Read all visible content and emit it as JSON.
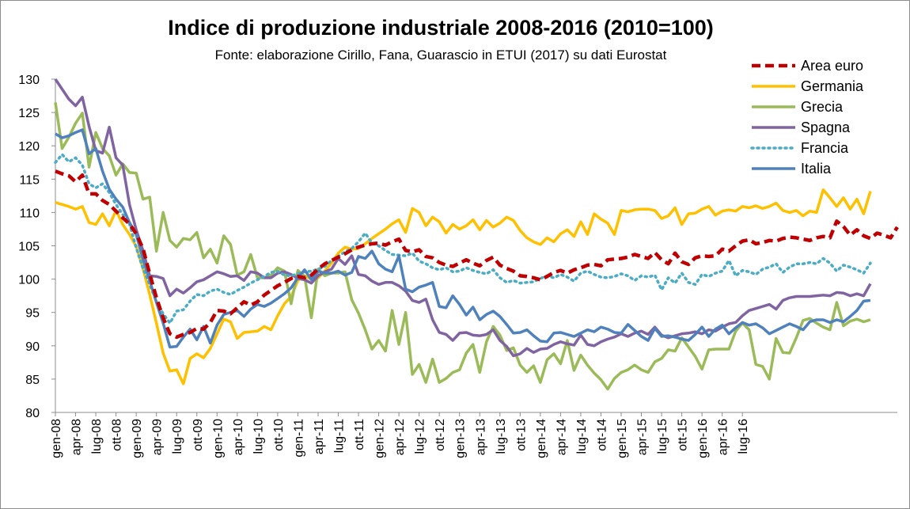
{
  "chart_data": {
    "type": "line",
    "title": "Indice di produzione industriale 2008-2016 (2010=100)",
    "subtitle": "Fonte: elaborazione Cirillo, Fana, Guarascio in ETUI (2017) su dati Eurostat",
    "xlabel": "",
    "ylabel": "",
    "ylim": [
      80,
      130
    ],
    "y_ticks": [
      80,
      85,
      90,
      95,
      100,
      105,
      110,
      115,
      120,
      125,
      130
    ],
    "x_ticks": [
      "gen-08",
      "apr-08",
      "lug-08",
      "ott-08",
      "gen-09",
      "apr-09",
      "lug-09",
      "ott-09",
      "gen-10",
      "apr-10",
      "lug-10",
      "ott-10",
      "gen-11",
      "apr-11",
      "lug-11",
      "ott-11",
      "gen-12",
      "apr-12",
      "lug-12",
      "ott-12",
      "gen-13",
      "apr-13",
      "lug-13",
      "ott-13",
      "gen-14",
      "apr-14",
      "lug-14",
      "ott-14",
      "gen-15",
      "apr-15",
      "lug-15",
      "ott-15",
      "gen-16",
      "apr-16",
      "lug-16"
    ],
    "x_start": "gen-08",
    "frequency": "monthly",
    "grid": false,
    "legend_position": "top-right",
    "series": [
      {
        "name": "Area euro",
        "color": "#c00000",
        "style": "dashed",
        "values": [
          116.2,
          115.8,
          115.5,
          114.6,
          115.6,
          112.8,
          112.8,
          111.8,
          111.2,
          110.2,
          109.2,
          108.3,
          106.8,
          104.6,
          100.8,
          97.2,
          94.2,
          91.8,
          91.3,
          91.7,
          92.0,
          92.6,
          92.5,
          93.5,
          95.3,
          95.2,
          94.8,
          95.7,
          96.6,
          96.1,
          96.6,
          97.6,
          98.3,
          99.0,
          99.5,
          100.1,
          100.4,
          100.2,
          100.6,
          101.5,
          102.3,
          102.8,
          103.3,
          103.8,
          104.4,
          104.8,
          105.1,
          105.3,
          105.4,
          105.1,
          105.6,
          106.0,
          104.3,
          104.1,
          104.4,
          103.4,
          103.2,
          102.5,
          102.1,
          101.9,
          102.4,
          102.9,
          102.4,
          102.0,
          102.8,
          103.3,
          102.1,
          101.6,
          101.2,
          100.5,
          100.4,
          100.2,
          99.9,
          100.4,
          101.0,
          101.3,
          100.9,
          101.4,
          101.7,
          102.1,
          102.2,
          102.0,
          102.9,
          103.0,
          103.1,
          103.3,
          103.7,
          103.4,
          103.1,
          104.0,
          102.9,
          102.3,
          103.9,
          102.6,
          102.2,
          103.2,
          103.5,
          103.4,
          103.5,
          104.5,
          104.2,
          105.0,
          105.7,
          105.9,
          105.3,
          105.5,
          105.8,
          105.7,
          106.1,
          106.3,
          106.2,
          106.0,
          105.8,
          106.2,
          106.4,
          106.2,
          108.7,
          107.9,
          106.6,
          107.4,
          106.5,
          106.1,
          106.9,
          106.6,
          106.2,
          107.8
        ]
      },
      {
        "name": "Germania",
        "color": "#ffc000",
        "style": "solid",
        "values": [
          111.5,
          111.2,
          110.9,
          110.5,
          110.9,
          108.5,
          108.2,
          109.8,
          108.0,
          110.3,
          108.2,
          106.7,
          104.9,
          101.6,
          97.7,
          93.4,
          88.9,
          86.2,
          86.4,
          84.3,
          88.1,
          88.8,
          88.2,
          89.6,
          91.8,
          94.0,
          93.6,
          91.1,
          92.0,
          92.1,
          92.2,
          92.9,
          92.4,
          94.5,
          96.3,
          97.4,
          99.8,
          100.5,
          100.0,
          100.2,
          101.2,
          102.4,
          103.9,
          104.8,
          104.5,
          104.6,
          105.3,
          106.1,
          106.8,
          107.5,
          108.3,
          108.9,
          107.0,
          110.6,
          110.0,
          108.0,
          109.3,
          108.6,
          106.9,
          108.2,
          107.5,
          108.0,
          108.9,
          107.4,
          108.8,
          107.8,
          108.4,
          109.3,
          108.8,
          107.3,
          106.2,
          105.6,
          105.2,
          106.2,
          105.6,
          106.8,
          107.4,
          106.4,
          108.6,
          106.7,
          109.8,
          109.0,
          108.4,
          106.7,
          110.3,
          110.1,
          110.4,
          110.5,
          110.5,
          110.3,
          109.1,
          109.5,
          110.7,
          108.2,
          109.8,
          109.9,
          110.5,
          110.9,
          109.6,
          110.2,
          110.4,
          110.2,
          110.9,
          110.7,
          111.0,
          110.6,
          110.9,
          111.4,
          110.3,
          110.0,
          110.3,
          109.5,
          110.2,
          110.0,
          113.4,
          112.2,
          110.9,
          112.2,
          110.5,
          112.0,
          109.8,
          113.2
        ]
      },
      {
        "name": "Grecia",
        "color": "#9bbb59",
        "style": "solid",
        "values": [
          126.5,
          119.6,
          121.3,
          123.4,
          124.9,
          116.8,
          122.0,
          119.6,
          118.5,
          115.6,
          117.3,
          116.0,
          115.9,
          112.0,
          112.3,
          104.2,
          110.0,
          105.8,
          104.8,
          106.1,
          105.9,
          107.0,
          103.2,
          104.5,
          102.4,
          106.5,
          105.2,
          100.6,
          101.1,
          103.7,
          100.2,
          100.2,
          100.6,
          101.7,
          101.2,
          96.3,
          101.3,
          100.4,
          94.2,
          101.5,
          100.5,
          100.9,
          100.9,
          101.1,
          96.9,
          94.9,
          92.4,
          89.5,
          90.8,
          89.2,
          95.3,
          90.2,
          95.0,
          85.7,
          87.2,
          84.5,
          88.0,
          84.5,
          85.1,
          86.0,
          86.4,
          88.9,
          90.2,
          86.0,
          90.6,
          92.9,
          91.6,
          89.3,
          89.7,
          87.1,
          86.0,
          87.0,
          84.5,
          87.9,
          88.8,
          87.3,
          90.8,
          86.3,
          88.6,
          87.1,
          85.9,
          84.9,
          83.5,
          85.1,
          86.0,
          86.4,
          87.1,
          86.4,
          86.0,
          87.6,
          88.1,
          89.4,
          89.2,
          91.2,
          89.8,
          88.4,
          86.5,
          89.4,
          89.5,
          89.5,
          89.5,
          92.2,
          93.4,
          92.4,
          87.2,
          86.9,
          85.0,
          91.1,
          89.0,
          88.9,
          91.2,
          93.8,
          94.1,
          93.4,
          92.8,
          92.4,
          96.5,
          93.0,
          93.7,
          94.0,
          93.6,
          93.9
        ]
      },
      {
        "name": "Spagna",
        "color": "#8064a2",
        "style": "solid",
        "values": [
          130.0,
          128.5,
          127.0,
          126.0,
          127.3,
          122.9,
          119.3,
          118.9,
          122.8,
          118.2,
          117.1,
          111.2,
          107.4,
          104.3,
          100.5,
          100.4,
          100.1,
          97.5,
          98.5,
          97.9,
          98.7,
          99.6,
          99.9,
          100.5,
          101.1,
          100.8,
          100.4,
          100.5,
          99.8,
          101.1,
          100.9,
          100.2,
          100.2,
          100.9,
          101.1,
          100.7,
          100.1,
          99.9,
          99.4,
          100.5,
          101.1,
          101.5,
          103.1,
          102.2,
          103.5,
          100.7,
          100.5,
          99.7,
          99.2,
          99.5,
          99.5,
          99.0,
          98.2,
          96.8,
          96.5,
          97.0,
          93.9,
          92.0,
          91.7,
          90.8,
          91.9,
          92.0,
          91.6,
          91.5,
          91.7,
          92.4,
          90.8,
          89.9,
          88.5,
          88.8,
          89.6,
          89.0,
          89.5,
          89.6,
          90.2,
          90.6,
          90.3,
          90.1,
          91.6,
          90.2,
          90.0,
          90.6,
          91.0,
          91.3,
          91.8,
          91.4,
          91.9,
          92.2,
          91.7,
          92.8,
          91.6,
          91.2,
          91.5,
          91.8,
          91.9,
          92.1,
          91.8,
          92.4,
          92.2,
          92.8,
          93.3,
          93.5,
          94.5,
          95.3,
          95.6,
          95.9,
          96.2,
          95.5,
          96.8,
          97.2,
          97.4,
          97.4,
          97.4,
          97.5,
          97.6,
          97.5,
          98.0,
          97.9,
          97.5,
          97.8,
          97.5,
          99.3
        ]
      },
      {
        "name": "Francia",
        "color": "#4bacc6",
        "style": "dotted",
        "values": [
          117.5,
          118.7,
          117.6,
          118.2,
          117.1,
          114.3,
          113.7,
          114.3,
          113.0,
          111.2,
          109.7,
          108.3,
          104.7,
          101.6,
          99.2,
          96.6,
          94.8,
          93.4,
          95.2,
          95.4,
          96.7,
          97.7,
          97.5,
          98.2,
          98.5,
          98.0,
          97.7,
          98.3,
          98.8,
          99.4,
          99.9,
          100.4,
          101.0,
          101.2,
          100.6,
          100.5,
          100.8,
          101.1,
          101.2,
          101.5,
          101.9,
          102.8,
          103.4,
          104.1,
          104.6,
          105.6,
          106.9,
          105.4,
          105.0,
          104.3,
          103.7,
          103.6,
          103.5,
          103.9,
          102.7,
          102.3,
          101.7,
          101.4,
          101.7,
          101.1,
          101.2,
          101.7,
          101.3,
          101.0,
          100.8,
          101.4,
          100.2,
          99.5,
          99.8,
          99.4,
          99.5,
          99.6,
          100.1,
          100.5,
          100.2,
          100.7,
          100.3,
          99.7,
          100.9,
          101.2,
          100.7,
          100.3,
          100.2,
          100.4,
          100.8,
          100.5,
          99.8,
          100.5,
          100.3,
          100.6,
          98.4,
          100.2,
          99.4,
          100.9,
          99.5,
          99.2,
          100.7,
          100.4,
          100.9,
          101.2,
          102.8,
          100.5,
          101.3,
          101.1,
          100.7,
          101.5,
          101.8,
          102.3,
          101.0,
          101.8,
          102.3,
          102.3,
          102.5,
          102.3,
          103.1,
          102.4,
          101.2,
          102.1,
          101.8,
          101.4,
          100.9,
          102.4
        ]
      },
      {
        "name": "Italia",
        "color": "#4f81bd",
        "style": "solid",
        "values": [
          121.8,
          121.2,
          121.5,
          122.0,
          122.4,
          118.8,
          119.6,
          116.2,
          113.5,
          112.0,
          110.8,
          108.5,
          106.7,
          103.0,
          99.8,
          96.5,
          93.4,
          89.8,
          89.9,
          91.3,
          92.5,
          90.9,
          92.9,
          90.4,
          93.1,
          94.7,
          95.0,
          95.3,
          94.4,
          95.5,
          96.2,
          95.9,
          96.4,
          97.1,
          97.8,
          98.7,
          100.2,
          101.4,
          99.9,
          101.2,
          100.9,
          100.9,
          101.2,
          100.6,
          101.0,
          103.4,
          103.1,
          104.2,
          102.3,
          101.5,
          101.1,
          103.5,
          98.5,
          98.1,
          98.8,
          99.1,
          99.5,
          95.9,
          95.7,
          97.5,
          96.2,
          94.6,
          95.8,
          93.9,
          94.7,
          95.2,
          94.4,
          93.2,
          91.9,
          92.0,
          92.4,
          91.5,
          90.7,
          90.6,
          91.9,
          92.0,
          91.7,
          91.4,
          91.9,
          92.4,
          92.1,
          92.8,
          92.5,
          92.0,
          91.9,
          93.2,
          92.3,
          91.4,
          90.8,
          92.6,
          91.4,
          91.5,
          91.3,
          91.0,
          90.8,
          91.7,
          92.8,
          91.4,
          92.5,
          93.1,
          91.8,
          92.7,
          93.5,
          93.1,
          93.3,
          92.7,
          91.8,
          92.3,
          92.8,
          93.3,
          92.9,
          92.4,
          93.6,
          93.9,
          93.9,
          93.5,
          93.9,
          93.6,
          94.4,
          95.3,
          96.7,
          96.8
        ]
      }
    ]
  }
}
